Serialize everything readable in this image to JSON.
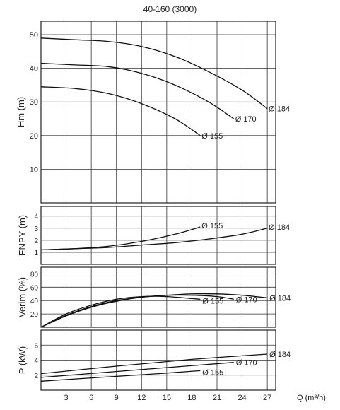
{
  "title": "40-160 (3000)",
  "chart_data": [
    {
      "type": "line",
      "ylabel": "Hm (m)",
      "xlabel": "",
      "xlim": [
        0,
        28
      ],
      "ylim": [
        0,
        54
      ],
      "yticks": [
        10,
        20,
        30,
        40,
        50
      ],
      "grid": true,
      "series": [
        {
          "name": "Ø 184",
          "x": [
            0,
            4,
            8,
            12,
            16,
            20,
            24,
            27
          ],
          "y": [
            49,
            48.5,
            48,
            46.5,
            43.5,
            39,
            33.5,
            28
          ]
        },
        {
          "name": "Ø 170",
          "x": [
            0,
            4,
            8,
            12,
            16,
            20,
            23
          ],
          "y": [
            41.5,
            41,
            40.5,
            38.5,
            35,
            30,
            25
          ]
        },
        {
          "name": "Ø 155",
          "x": [
            0,
            4,
            8,
            12,
            16,
            19
          ],
          "y": [
            34.5,
            34,
            32.5,
            29.5,
            25,
            20
          ]
        }
      ]
    },
    {
      "type": "line",
      "ylabel": "ENPY (m)",
      "xlabel": "",
      "xlim": [
        0,
        28
      ],
      "ylim": [
        0,
        4.8
      ],
      "yticks": [
        1,
        2,
        3,
        4
      ],
      "grid": true,
      "series": [
        {
          "name": "Ø 155",
          "x": [
            0,
            4,
            8,
            12,
            16,
            19
          ],
          "y": [
            1.2,
            1.3,
            1.5,
            1.9,
            2.5,
            3.1
          ]
        },
        {
          "name": "Ø 184",
          "x": [
            0,
            4,
            8,
            12,
            16,
            20,
            24,
            27
          ],
          "y": [
            1.2,
            1.3,
            1.4,
            1.6,
            1.8,
            2.1,
            2.5,
            3.0
          ]
        }
      ]
    },
    {
      "type": "line",
      "ylabel": "Verim (%)",
      "xlabel": "",
      "xlim": [
        0,
        28
      ],
      "ylim": [
        0,
        90
      ],
      "yticks": [
        20,
        40,
        60,
        80
      ],
      "grid": true,
      "series": [
        {
          "name": "Ø 155",
          "x": [
            0,
            3,
            6,
            9,
            12,
            15,
            18,
            19
          ],
          "y": [
            0,
            20,
            33,
            42,
            46,
            46,
            43,
            42
          ]
        },
        {
          "name": "Ø 170",
          "x": [
            0,
            3,
            6,
            9,
            12,
            15,
            18,
            21,
            23
          ],
          "y": [
            0,
            18,
            31,
            40,
            45,
            48,
            48,
            46,
            42
          ]
        },
        {
          "name": "Ø 184",
          "x": [
            0,
            3,
            6,
            9,
            12,
            15,
            18,
            21,
            24,
            27
          ],
          "y": [
            0,
            17,
            30,
            39,
            45,
            48,
            50,
            50,
            48,
            44
          ]
        }
      ]
    },
    {
      "type": "line",
      "ylabel": "P (kW)",
      "xlabel": "Q (m³/h)",
      "xlim": [
        0,
        28
      ],
      "ylim": [
        0,
        8
      ],
      "yticks": [
        2,
        4,
        6
      ],
      "xticks": [
        3,
        6,
        9,
        12,
        15,
        18,
        21,
        24,
        27
      ],
      "grid": true,
      "series": [
        {
          "name": "Ø 184",
          "x": [
            0,
            9,
            18,
            27
          ],
          "y": [
            2.2,
            3.2,
            4.1,
            4.8
          ]
        },
        {
          "name": "Ø 170",
          "x": [
            0,
            8,
            16,
            23
          ],
          "y": [
            1.7,
            2.4,
            3.1,
            3.7
          ]
        },
        {
          "name": "Ø 155",
          "x": [
            0,
            7,
            14,
            19
          ],
          "y": [
            1.2,
            1.7,
            2.2,
            2.6
          ]
        }
      ]
    }
  ]
}
